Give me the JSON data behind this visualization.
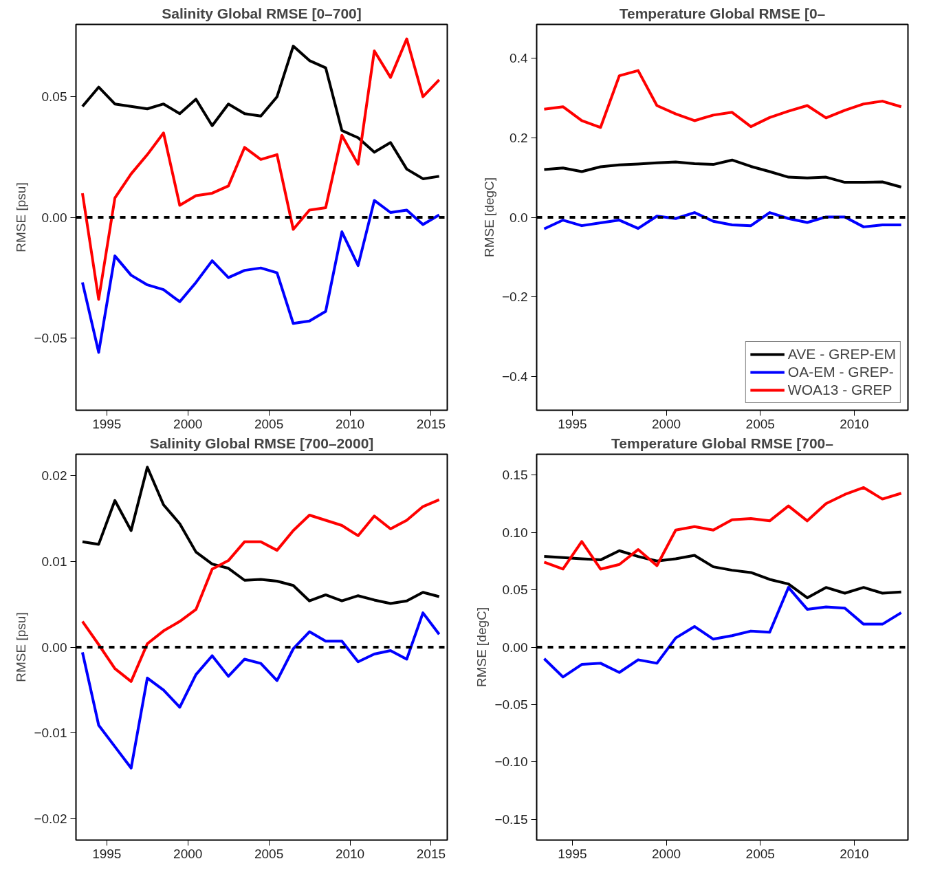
{
  "chart_data": [
    {
      "type": "line",
      "title": "Salinity Global RMSE [0–700]",
      "ylabel": "RMSE [psu]",
      "x": [
        1993.5,
        1994.5,
        1995.5,
        1996.5,
        1997.5,
        1998.5,
        1999.5,
        2000.5,
        2001.5,
        2002.5,
        2003.5,
        2004.5,
        2005.5,
        2006.5,
        2007.5,
        2008.5,
        2009.5,
        2010.5,
        2011.5,
        2012.5,
        2013.5,
        2014.5,
        2015.5
      ],
      "xlim": [
        1993.1,
        2016.0
      ],
      "xticks": [
        1995,
        2000,
        2005,
        2010,
        2015
      ],
      "ylim": [
        -0.08,
        0.08
      ],
      "yticks": [
        {
          "value": -0.05,
          "label": "−0.05"
        },
        {
          "value": 0,
          "label": "0.00"
        },
        {
          "value": 0.05,
          "label": "0.05"
        }
      ],
      "grid": false,
      "legend": false,
      "line_style": "solid",
      "ref_lines": [
        {
          "axis": "y",
          "value": 0,
          "label": null,
          "color": "#000000",
          "line_style": "dashed"
        }
      ],
      "series": [
        {
          "color": "#000000",
          "values": [
            0.046,
            0.054,
            0.047,
            0.046,
            0.045,
            0.047,
            0.043,
            0.049,
            0.038,
            0.047,
            0.043,
            0.042,
            0.05,
            0.071,
            0.065,
            0.062,
            0.036,
            0.033,
            0.027,
            0.031,
            0.02,
            0.016,
            0.017
          ]
        },
        {
          "color": "#0000ff",
          "values": [
            -0.027,
            -0.056,
            -0.016,
            -0.024,
            -0.028,
            -0.03,
            -0.035,
            -0.027,
            -0.018,
            -0.025,
            -0.022,
            -0.021,
            -0.023,
            -0.044,
            -0.043,
            -0.039,
            -0.006,
            -0.02,
            0.007,
            0.002,
            0.003,
            -0.003,
            0.001
          ]
        },
        {
          "color": "#ff0000",
          "values": [
            0.01,
            -0.034,
            0.008,
            0.018,
            0.026,
            0.035,
            0.005,
            0.009,
            0.01,
            0.013,
            0.029,
            0.024,
            0.026,
            -0.005,
            0.003,
            0.004,
            0.034,
            0.022,
            0.069,
            0.058,
            0.074,
            0.05,
            0.057
          ]
        }
      ]
    },
    {
      "type": "line",
      "title": "Temperature Global RMSE [0–",
      "ylabel": "RMSE [degC]",
      "x": [
        1993.5,
        1994.5,
        1995.5,
        1996.5,
        1997.5,
        1998.5,
        1999.5,
        2000.5,
        2001.5,
        2002.5,
        2003.5,
        2004.5,
        2005.5,
        2006.5,
        2007.5,
        2008.5,
        2009.5,
        2010.5,
        2011.5,
        2012.5
      ],
      "xlim": [
        1993.1,
        2012.86
      ],
      "xticks": [
        1995,
        2000,
        2005,
        2010
      ],
      "ylim": [
        -0.485,
        0.485
      ],
      "yticks": [
        {
          "value": -0.4,
          "label": "−0.4"
        },
        {
          "value": -0.2,
          "label": "−0.2"
        },
        {
          "value": 0,
          "label": "0.0"
        },
        {
          "value": 0.2,
          "label": "0.2"
        },
        {
          "value": 0.4,
          "label": "0.4"
        }
      ],
      "grid": false,
      "legend": "bottom right",
      "line_style": "solid",
      "ref_lines": [
        {
          "axis": "y",
          "value": 0,
          "label": null,
          "color": "#000000",
          "line_style": "dashed"
        }
      ],
      "series": [
        {
          "name": "AVE - GREP-EM",
          "color": "#000000",
          "values": [
            0.12,
            0.124,
            0.115,
            0.127,
            0.132,
            0.134,
            0.137,
            0.139,
            0.135,
            0.133,
            0.144,
            0.128,
            0.115,
            0.101,
            0.099,
            0.101,
            0.088,
            0.088,
            0.089,
            0.076
          ]
        },
        {
          "name": "OA-EM - GREP-",
          "color": "#0000ff",
          "values": [
            -0.029,
            -0.007,
            -0.021,
            -0.014,
            -0.007,
            -0.028,
            0.003,
            -0.003,
            0.012,
            -0.01,
            -0.019,
            -0.021,
            0.012,
            -0.003,
            -0.013,
            0.001,
            0.001,
            -0.024,
            -0.019,
            -0.019
          ]
        },
        {
          "name": "WOA13 - GREP",
          "color": "#ff0000",
          "values": [
            0.272,
            0.278,
            0.243,
            0.226,
            0.356,
            0.369,
            0.281,
            0.26,
            0.243,
            0.257,
            0.264,
            0.228,
            0.251,
            0.267,
            0.281,
            0.25,
            0.269,
            0.285,
            0.292,
            0.278
          ]
        }
      ]
    },
    {
      "type": "line",
      "title": "Salinity Global RMSE [700–2000]",
      "ylabel": "RMSE [psu]",
      "x": [
        1993.5,
        1994.5,
        1995.5,
        1996.5,
        1997.5,
        1998.5,
        1999.5,
        2000.5,
        2001.5,
        2002.5,
        2003.5,
        2004.5,
        2005.5,
        2006.5,
        2007.5,
        2008.5,
        2009.5,
        2010.5,
        2011.5,
        2012.5,
        2013.5,
        2014.5,
        2015.5
      ],
      "xlim": [
        1993.1,
        2016.0
      ],
      "xticks": [
        1995,
        2000,
        2005,
        2010,
        2015
      ],
      "ylim": [
        -0.0225,
        0.0225
      ],
      "yticks": [
        {
          "value": -0.02,
          "label": "−0.02"
        },
        {
          "value": -0.01,
          "label": "−0.01"
        },
        {
          "value": 0,
          "label": "0.00"
        },
        {
          "value": 0.01,
          "label": "0.01"
        },
        {
          "value": 0.02,
          "label": "0.02"
        }
      ],
      "grid": false,
      "legend": false,
      "line_style": "solid",
      "ref_lines": [
        {
          "axis": "y",
          "value": 0,
          "label": null,
          "color": "#000000",
          "line_style": "dashed"
        }
      ],
      "series": [
        {
          "color": "#000000",
          "values": [
            0.0123,
            0.012,
            0.0171,
            0.0136,
            0.021,
            0.0166,
            0.0144,
            0.0111,
            0.0097,
            0.0092,
            0.0078,
            0.0079,
            0.0077,
            0.0072,
            0.0054,
            0.0061,
            0.0054,
            0.006,
            0.0055,
            0.0051,
            0.0054,
            0.0064,
            0.0059
          ]
        },
        {
          "color": "#0000ff",
          "values": [
            -0.0006,
            -0.0091,
            -0.0116,
            -0.0141,
            -0.0036,
            -0.005,
            -0.007,
            -0.0032,
            -0.001,
            -0.0034,
            -0.0014,
            -0.0019,
            -0.0039,
            -0.0002,
            0.0018,
            0.0007,
            0.0007,
            -0.0017,
            -0.0008,
            -0.0004,
            -0.0014,
            0.004,
            0.0015
          ]
        },
        {
          "color": "#ff0000",
          "values": [
            0.003,
            0.0003,
            -0.0025,
            -0.004,
            0.0004,
            0.0019,
            0.003,
            0.0044,
            0.0091,
            0.0101,
            0.0123,
            0.0123,
            0.0113,
            0.0136,
            0.0154,
            0.0148,
            0.0142,
            0.013,
            0.0153,
            0.0138,
            0.0148,
            0.0164,
            0.0172
          ]
        }
      ]
    },
    {
      "type": "line",
      "title": "Temperature Global RMSE [700–",
      "ylabel": "RMSE [degC]",
      "x": [
        1993.5,
        1994.5,
        1995.5,
        1996.5,
        1997.5,
        1998.5,
        1999.5,
        2000.5,
        2001.5,
        2002.5,
        2003.5,
        2004.5,
        2005.5,
        2006.5,
        2007.5,
        2008.5,
        2009.5,
        2010.5,
        2011.5,
        2012.5
      ],
      "xlim": [
        1993.1,
        2012.86
      ],
      "xticks": [
        1995,
        2000,
        2005,
        2010
      ],
      "ylim": [
        -0.168,
        0.168
      ],
      "yticks": [
        {
          "value": -0.15,
          "label": "−0.15"
        },
        {
          "value": -0.1,
          "label": "−0.10"
        },
        {
          "value": -0.05,
          "label": "−0.05"
        },
        {
          "value": 0,
          "label": "0.00"
        },
        {
          "value": 0.05,
          "label": "0.05"
        },
        {
          "value": 0.1,
          "label": "0.10"
        },
        {
          "value": 0.15,
          "label": "0.15"
        }
      ],
      "grid": false,
      "legend": false,
      "line_style": "solid",
      "ref_lines": [
        {
          "axis": "y",
          "value": 0,
          "label": null,
          "color": "#000000",
          "line_style": "dashed"
        }
      ],
      "series": [
        {
          "color": "#000000",
          "values": [
            0.079,
            0.078,
            0.077,
            0.076,
            0.084,
            0.079,
            0.075,
            0.077,
            0.08,
            0.07,
            0.067,
            0.065,
            0.059,
            0.055,
            0.043,
            0.052,
            0.047,
            0.052,
            0.047,
            0.048
          ]
        },
        {
          "color": "#0000ff",
          "values": [
            -0.01,
            -0.026,
            -0.015,
            -0.014,
            -0.022,
            -0.011,
            -0.014,
            0.008,
            0.018,
            0.007,
            0.01,
            0.014,
            0.013,
            0.052,
            0.033,
            0.035,
            0.034,
            0.02,
            0.02,
            0.03
          ]
        },
        {
          "color": "#ff0000",
          "values": [
            0.074,
            0.068,
            0.092,
            0.068,
            0.072,
            0.085,
            0.071,
            0.102,
            0.105,
            0.102,
            0.111,
            0.112,
            0.11,
            0.123,
            0.11,
            0.125,
            0.133,
            0.139,
            0.129,
            0.134
          ]
        }
      ]
    }
  ]
}
